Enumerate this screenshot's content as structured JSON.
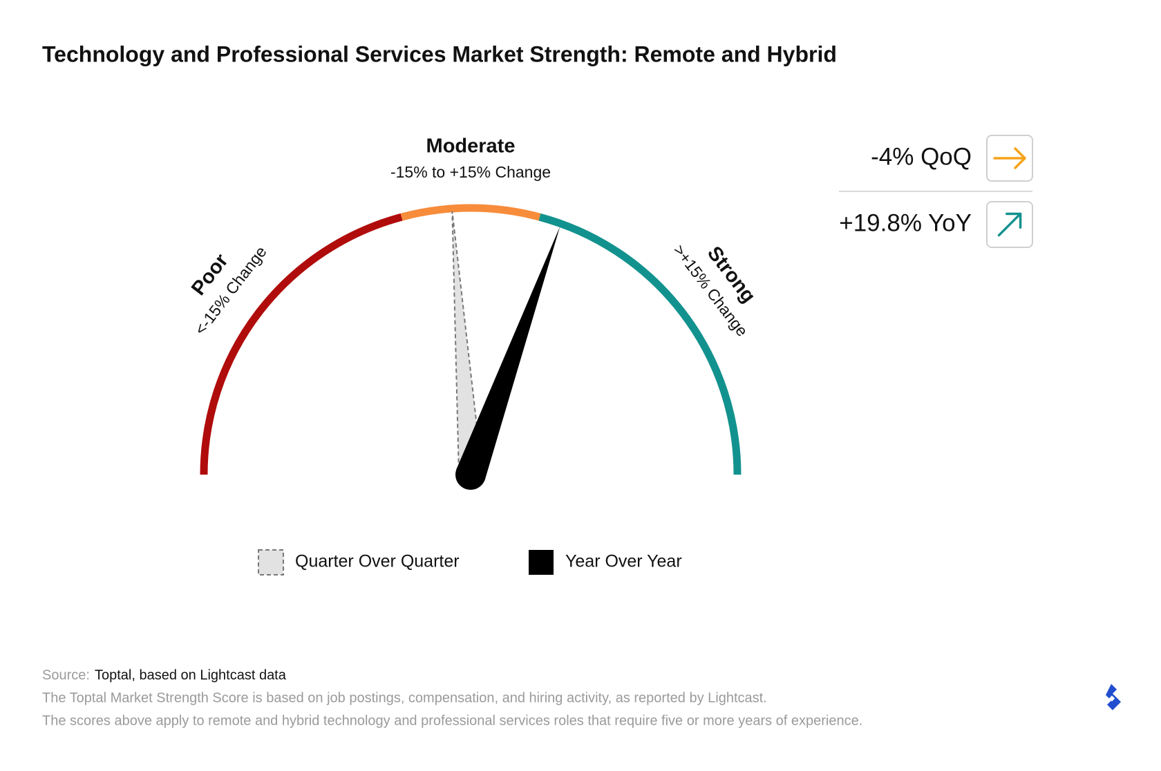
{
  "chart_data": {
    "type": "gauge",
    "title": "Technology and Professional Services Market Strength: Remote and Hybrid",
    "ylim": [
      -90,
      90
    ],
    "thresholds": [
      -15,
      15
    ],
    "zones": [
      {
        "name": "Poor",
        "label": "<-15% Change",
        "color": "#b00c0c"
      },
      {
        "name": "Moderate",
        "label": "-15% to +15% Change",
        "color": "#f78c3a"
      },
      {
        "name": "Strong",
        "label": ">+15% Change",
        "color": "#12928e"
      }
    ],
    "series": [
      {
        "name": "Quarter Over Quarter",
        "color": "#e2e2e2",
        "values": [
          -4
        ],
        "value_labels": [
          "-4% QoQ"
        ],
        "arrow_color": "#f5a31a"
      },
      {
        "name": "Year Over Year",
        "color": "#000000",
        "values": [
          19.8
        ],
        "value_labels": [
          "+19.8% YoY"
        ],
        "arrow_color": "#12928e"
      }
    ],
    "source_label": "Source:",
    "source": "Toptal, based on Lightcast data",
    "notes": [
      "The Toptal Market Strength Score is based on job postings, compensation, and hiring activity, as reported by Lightcast.",
      "The scores above apply to remote and hybrid technology and professional services roles that require five or more years of experience."
    ]
  }
}
